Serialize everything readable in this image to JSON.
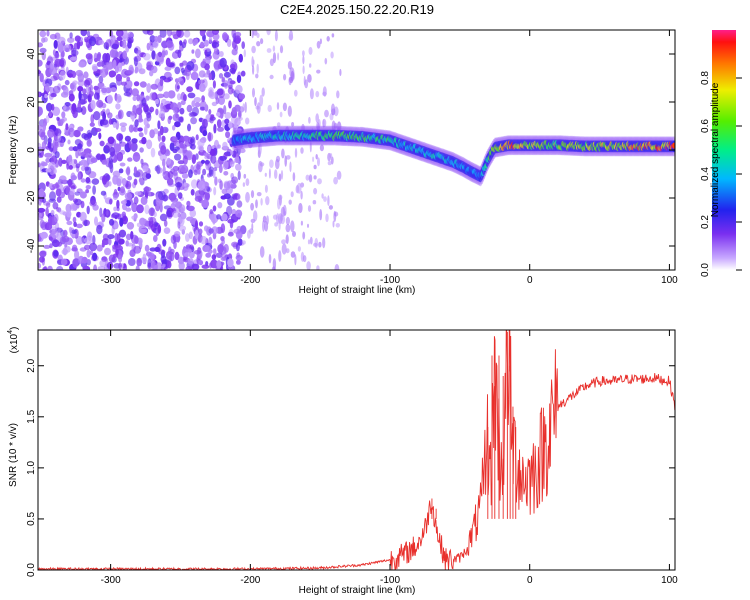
{
  "title": "C2E4.2025.150.22.20.R19",
  "chart_data": [
    {
      "type": "heatmap",
      "xlabel": "Height of straight line (km)",
      "ylabel": "Frequency (Hz)",
      "xlim": [
        -352,
        104
      ],
      "ylim": [
        -50,
        50
      ],
      "x_ticks": [
        -300,
        -200,
        -100,
        0,
        100
      ],
      "y_ticks": [
        -40,
        -20,
        0,
        20,
        40
      ],
      "colorbar": {
        "label": "Normalized spectral amplitude",
        "range": [
          0,
          1
        ],
        "ticks": [
          "0.0",
          "0.2",
          "0.4",
          "0.6",
          "0.8"
        ]
      },
      "noise_region_x": [
        -352,
        -205
      ],
      "sparse_noise_x": [
        -205,
        -135
      ],
      "ridge": {
        "x": [
          -212,
          -200,
          -180,
          -160,
          -140,
          -120,
          -100,
          -85,
          -70,
          -55,
          -48,
          -42,
          -35,
          -30,
          -25,
          -15,
          0,
          20,
          40,
          60,
          80,
          100
        ],
        "y": [
          4,
          5,
          6,
          6,
          6,
          5.5,
          4,
          1,
          -2,
          -5,
          -7,
          -9,
          -11,
          -4,
          1,
          2,
          2,
          2,
          1.5,
          1.5,
          1.5,
          1.5
        ],
        "amp": [
          0.35,
          0.4,
          0.45,
          0.5,
          0.6,
          0.55,
          0.5,
          0.45,
          0.45,
          0.4,
          0.4,
          0.35,
          0.35,
          0.5,
          0.7,
          0.9,
          0.75,
          0.65,
          0.7,
          0.75,
          0.85,
          0.9
        ]
      }
    },
    {
      "type": "line",
      "xlabel": "Height of straight line (km)",
      "ylabel": "SNR (10 * v/v)",
      "y_multiplier": "(x10",
      "y_exponent": "4",
      "y_multiplier_close": ")",
      "xlim": [
        -352,
        104
      ],
      "ylim": [
        0,
        2.35
      ],
      "x_ticks": [
        -300,
        -200,
        -100,
        0,
        100
      ],
      "y_ticks": [
        "0.0",
        "0.5",
        "1.0",
        "1.5",
        "2.0"
      ],
      "series": [
        {
          "color": "#e8302c",
          "x": [
            -352,
            -300,
            -250,
            -200,
            -150,
            -120,
            -100,
            -90,
            -80,
            -75,
            -70,
            -68,
            -65,
            -60,
            -55,
            -50,
            -45,
            -40,
            -35,
            -30,
            -28,
            -25,
            -22,
            -20,
            -18,
            -15,
            -13,
            -10,
            -5,
            0,
            5,
            10,
            15,
            20,
            30,
            40,
            50,
            60,
            70,
            80,
            90,
            95,
            100,
            104
          ],
          "y": [
            0.01,
            0.01,
            0.01,
            0.01,
            0.02,
            0.05,
            0.1,
            0.15,
            0.25,
            0.4,
            0.7,
            0.5,
            0.3,
            0.1,
            0.1,
            0.12,
            0.2,
            0.4,
            0.6,
            1.3,
            0.9,
            2.0,
            1.2,
            1.0,
            1.4,
            2.3,
            1.3,
            1.1,
            0.9,
            0.9,
            1.0,
            1.2,
            1.4,
            1.6,
            1.7,
            1.8,
            1.85,
            1.85,
            1.87,
            1.87,
            1.88,
            1.86,
            1.85,
            1.6
          ],
          "spike_x": [
            -70,
            -67,
            -30,
            -27,
            -25,
            -22,
            -19,
            -16,
            -14,
            -12,
            -10
          ],
          "spike_y": [
            0.7,
            0.6,
            1.4,
            2.1,
            1.8,
            2.1,
            1.9,
            2.33,
            2.0,
            1.6,
            1.4
          ]
        }
      ]
    }
  ]
}
